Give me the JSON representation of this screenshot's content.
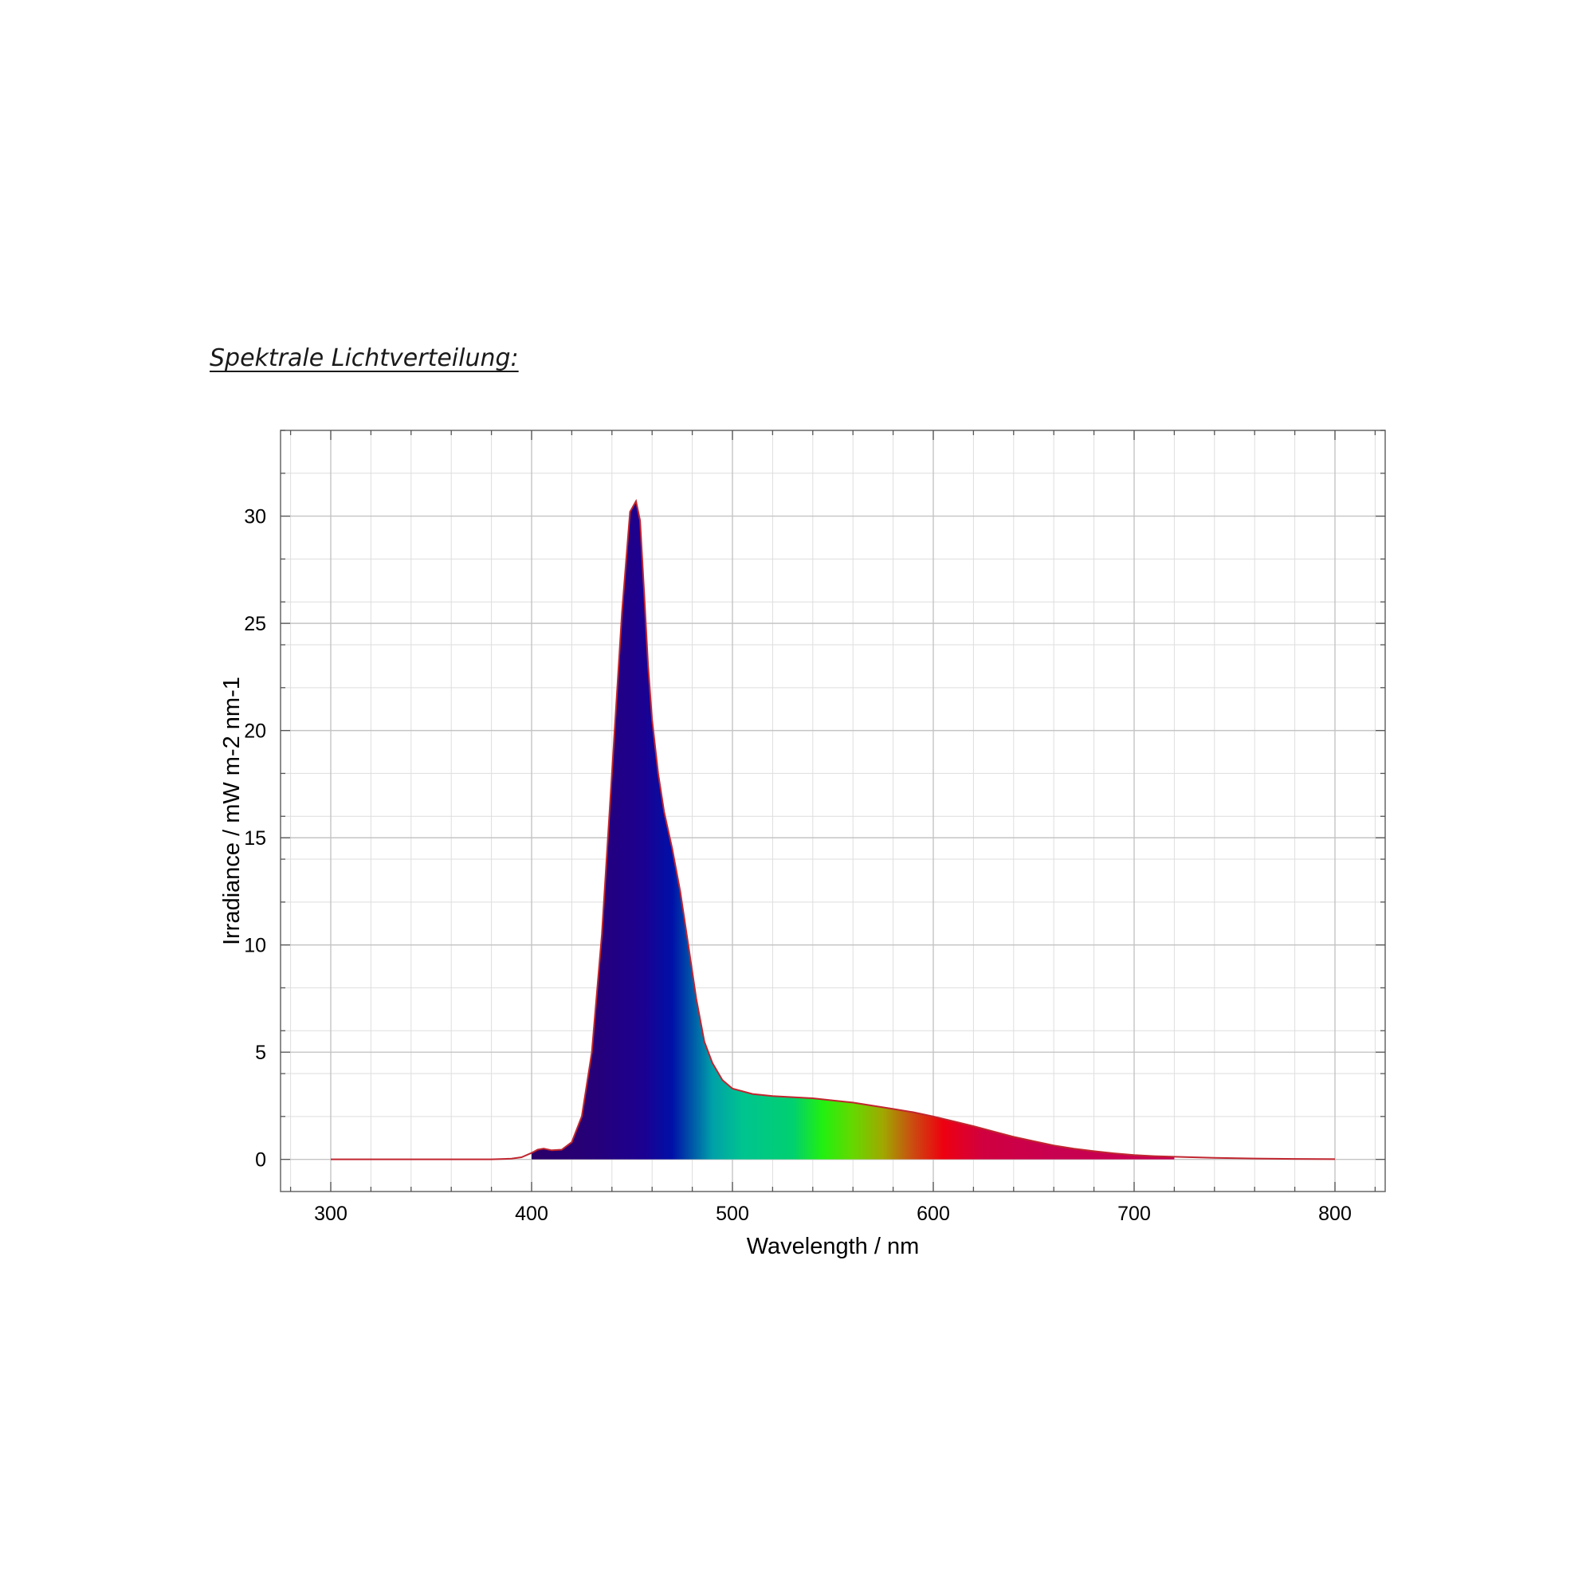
{
  "page": {
    "heading": "Spektrale Lichtverteilung:"
  },
  "chart_data": {
    "type": "area",
    "title": "",
    "xlabel": "Wavelength / nm",
    "ylabel": "Irradiance / mW m-2 nm-1",
    "xlim": [
      275,
      825
    ],
    "ylim": [
      -1.5,
      34
    ],
    "xticks": [
      300,
      400,
      500,
      600,
      700,
      800
    ],
    "yticks": [
      0,
      5,
      10,
      15,
      20,
      25,
      30
    ],
    "x_minor_step": 20,
    "y_minor_step": 2,
    "grid": true,
    "fill": "visible-spectrum gradient under curve from 400 to 720 nm",
    "line_color": "#c0262f",
    "fill_range": [
      400,
      720
    ],
    "series": [
      {
        "x": [
          300,
          380,
          390,
          395,
          400,
          403,
          406,
          410,
          415,
          420,
          425,
          430,
          435,
          440,
          445,
          449,
          452,
          454,
          456,
          458,
          460,
          463,
          466,
          470,
          474,
          478,
          482,
          486,
          490,
          495,
          500,
          510,
          520,
          530,
          540,
          550,
          560,
          570,
          580,
          590,
          600,
          610,
          620,
          630,
          640,
          650,
          660,
          670,
          680,
          690,
          700,
          710,
          720,
          740,
          760,
          780,
          800
        ],
        "y": [
          0,
          0,
          0.03,
          0.1,
          0.3,
          0.45,
          0.5,
          0.42,
          0.45,
          0.8,
          2.0,
          5.0,
          10.5,
          18.0,
          25.5,
          30.2,
          30.7,
          29.8,
          26.5,
          23.0,
          20.5,
          18.0,
          16.2,
          14.5,
          12.5,
          10.0,
          7.5,
          5.5,
          4.5,
          3.7,
          3.3,
          3.05,
          2.95,
          2.9,
          2.85,
          2.75,
          2.65,
          2.5,
          2.35,
          2.2,
          2.0,
          1.78,
          1.55,
          1.3,
          1.05,
          0.85,
          0.65,
          0.5,
          0.38,
          0.28,
          0.2,
          0.15,
          0.12,
          0.07,
          0.04,
          0.02,
          0.01
        ]
      }
    ]
  }
}
